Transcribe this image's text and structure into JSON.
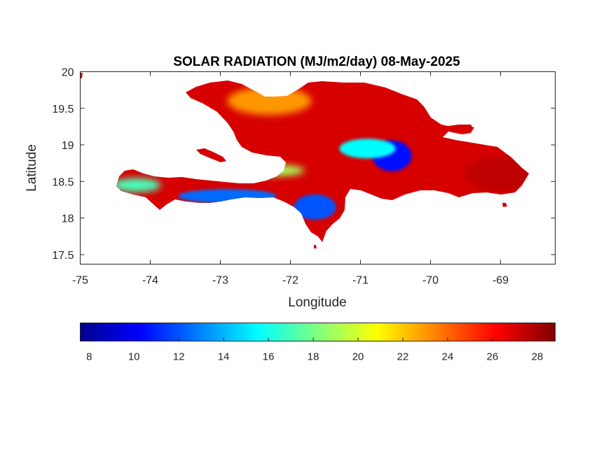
{
  "chart_data": {
    "type": "heatmap",
    "title": "SOLAR RADIATION (MJ/m2/day) 08-May-2025",
    "xlabel": "Longitude",
    "ylabel": "Latitude",
    "xlim": [
      -75,
      -68.22
    ],
    "ylim": [
      17.37,
      20
    ],
    "xticks": [
      -75,
      -74,
      -73,
      -72,
      -71,
      -70,
      -69
    ],
    "xtick_labels": [
      "-75",
      "-74",
      "-73",
      "-72",
      "-71",
      "-70",
      "-69"
    ],
    "yticks": [
      17.5,
      18,
      18.5,
      19,
      19.5,
      20
    ],
    "ytick_labels": [
      "17.5",
      "18",
      "18.5",
      "19",
      "19.5",
      "20"
    ],
    "colormap": "jet",
    "colorbar": {
      "orientation": "horizontal",
      "location": "bottom",
      "range": [
        7.6,
        28.8
      ],
      "ticks": [
        8,
        10,
        12,
        14,
        16,
        18,
        20,
        22,
        24,
        26,
        28
      ],
      "tick_labels": [
        "8",
        "10",
        "12",
        "14",
        "16",
        "18",
        "20",
        "22",
        "24",
        "26",
        "28"
      ]
    },
    "background_value": 27,
    "regions": [
      {
        "name": "low-central-highlands",
        "lon": -70.55,
        "lat": 18.85,
        "value": 10.5
      },
      {
        "name": "low-central-ridge",
        "lon": -70.9,
        "lat": 18.95,
        "value": 15.5
      },
      {
        "name": "low-southwest-peninsula",
        "lon": -72.9,
        "lat": 18.3,
        "value": 12.5
      },
      {
        "name": "low-southeast-coast",
        "lon": -71.65,
        "lat": 18.15,
        "value": 12
      },
      {
        "name": "low-south-coast-west",
        "lon": -74.2,
        "lat": 18.45,
        "value": 17
      },
      {
        "name": "moderate-central-valley",
        "lon": -72.2,
        "lat": 18.65,
        "value": 19
      },
      {
        "name": "moderate-north",
        "lon": -72.3,
        "lat": 19.6,
        "value": 23
      },
      {
        "name": "high-east",
        "lon": -69.0,
        "lat": 18.6,
        "value": 27.5
      }
    ],
    "grid": false
  }
}
